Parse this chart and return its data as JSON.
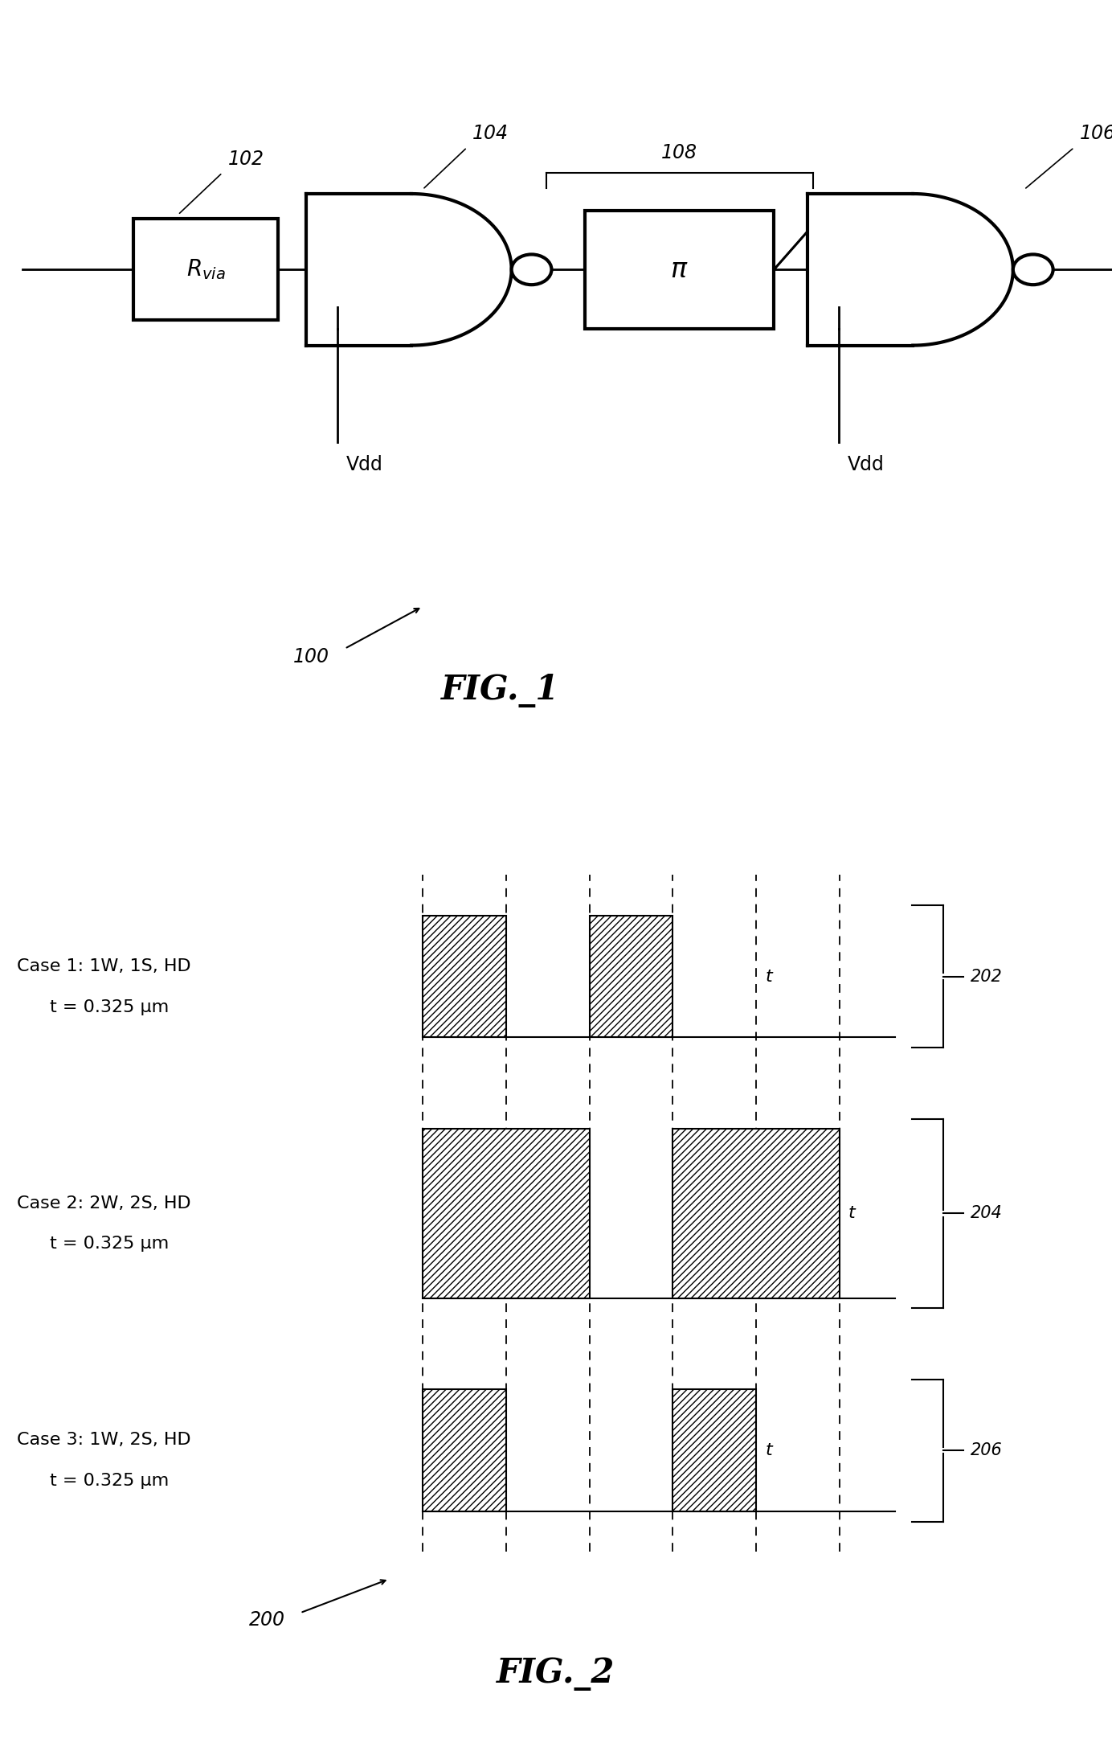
{
  "fig1_title": "FIG._1",
  "fig2_title": "FIG._2",
  "fig1_label": "100",
  "fig2_label": "200",
  "case1_label_line1": "Case 1: 1W, 1S, HD",
  "case1_label_line2": "t = 0.325 μm",
  "case2_label_line1": "Case 2: 2W, 2S, HD",
  "case2_label_line2": "t = 0.325 μm",
  "case3_label_line1": "Case 3: 1W, 2S, HD",
  "case3_label_line2": "t = 0.325 μm",
  "case1_ref": "202",
  "case2_ref": "204",
  "case3_ref": "206",
  "bg_color": "#ffffff"
}
